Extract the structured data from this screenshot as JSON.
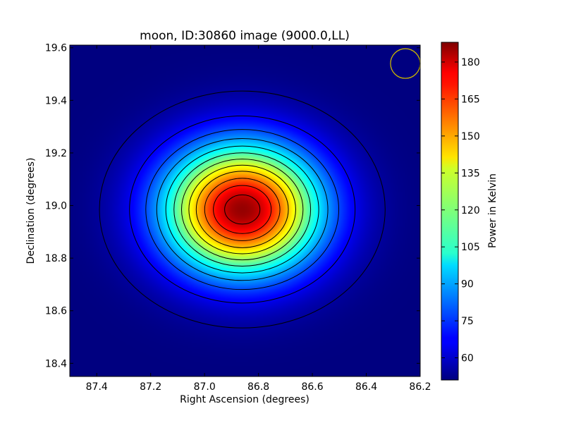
{
  "chart_data": {
    "type": "heatmap",
    "title": "moon, ID:30860 image (9000.0,LL)",
    "xlabel": "Right Ascension (degrees)",
    "ylabel": "Declination (degrees)",
    "xlim": [
      87.5,
      86.2
    ],
    "ylim": [
      18.35,
      19.61
    ],
    "x_ticks": [
      87.4,
      87.2,
      87.0,
      86.8,
      86.6,
      86.4,
      86.2
    ],
    "x_tick_labels": [
      "87.4",
      "87.2",
      "87.0",
      "86.8",
      "86.6",
      "86.4",
      "86.2"
    ],
    "y_ticks": [
      18.4,
      18.6,
      18.8,
      19.0,
      19.2,
      19.4,
      19.6
    ],
    "y_tick_labels": [
      "18.4",
      "18.6",
      "18.8",
      "19.0",
      "19.2",
      "19.4",
      "19.6"
    ],
    "colorbar": {
      "label": "Power in Kelvin",
      "range": [
        51,
        188
      ],
      "ticks": [
        60,
        75,
        90,
        105,
        120,
        135,
        150,
        165,
        180
      ],
      "tick_labels": [
        "60",
        "75",
        "90",
        "105",
        "120",
        "135",
        "150",
        "165",
        "180"
      ],
      "colormap": "jet"
    },
    "source": {
      "center_ra": 86.86,
      "center_dec": 18.985,
      "peak_kelvin": 185,
      "background_kelvin": 51,
      "sigma_ra_deg": 0.2,
      "sigma_dec_deg": 0.17
    },
    "contour_levels": [
      55,
      66,
      78,
      89,
      100,
      111,
      122,
      133,
      144,
      156,
      167,
      178
    ],
    "beam_circle": {
      "center_ra": 86.255,
      "center_dec": 19.54,
      "radius_deg": 0.055,
      "color": "#c8b400"
    },
    "colors": {
      "background": "#ffffff",
      "contour": "#000000"
    }
  }
}
